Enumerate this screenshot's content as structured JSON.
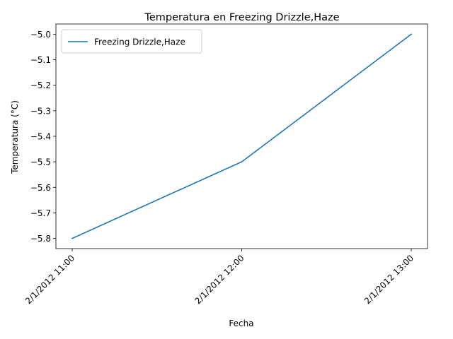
{
  "chart_data": {
    "type": "line",
    "title": "Temperatura en Freezing Drizzle,Haze",
    "xlabel": "Fecha",
    "ylabel": "Temperatura (°C)",
    "categories": [
      "2/1/2012 11:00",
      "2/1/2012 12:00",
      "2/1/2012 13:00"
    ],
    "series": [
      {
        "name": "Freezing Drizzle,Haze",
        "values": [
          -5.8,
          -5.5,
          -5.0
        ],
        "color": "#1f77b4"
      }
    ],
    "yticks": [
      -5.8,
      -5.7,
      -5.6,
      -5.5,
      -5.4,
      -5.3,
      -5.2,
      -5.1,
      -5.0
    ],
    "ytick_labels": [
      "−5.8",
      "−5.7",
      "−5.6",
      "−5.5",
      "−5.4",
      "−5.3",
      "−5.2",
      "−5.1",
      "−5.0"
    ],
    "ylim": [
      -5.84,
      -4.96
    ],
    "grid": false,
    "legend_position": "upper left"
  }
}
